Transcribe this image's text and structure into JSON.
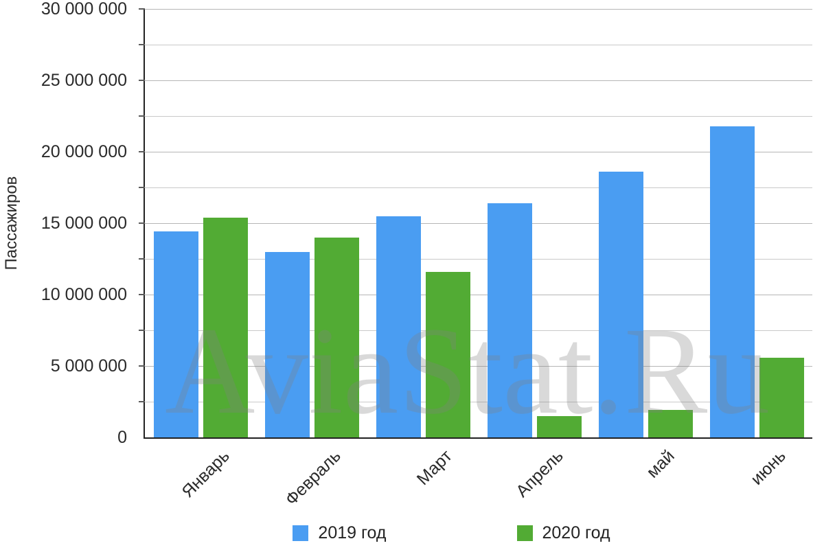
{
  "watermark": {
    "text": "AviaStat.Ru"
  },
  "chart_data": {
    "type": "bar",
    "title": "",
    "xlabel": "",
    "ylabel": "Пассажиров",
    "categories": [
      "Январь",
      "Февраль",
      "Март",
      "Апрель",
      "май",
      "июнь"
    ],
    "series": [
      {
        "name": "2019 год",
        "color": "#4A9DF2",
        "values": [
          14400000,
          13000000,
          15500000,
          16400000,
          18600000,
          21800000
        ]
      },
      {
        "name": "2020 год",
        "color": "#52AB34",
        "values": [
          15400000,
          14000000,
          11600000,
          1500000,
          1900000,
          5600000
        ]
      }
    ],
    "ylim": [
      0,
      30000000
    ],
    "y_major_step": 5000000,
    "y_minor_step": 2500000,
    "y_tick_labels": [
      "0",
      "5 000 000",
      "10 000 000",
      "15 000 000",
      "20 000 000",
      "25 000 000",
      "30 000 000"
    ],
    "grid": "horizontal",
    "legend_position": "bottom",
    "colors": {
      "axis": "#212121",
      "gridline": "#c9c9c9",
      "tick_text": "#2a2a2a"
    }
  }
}
